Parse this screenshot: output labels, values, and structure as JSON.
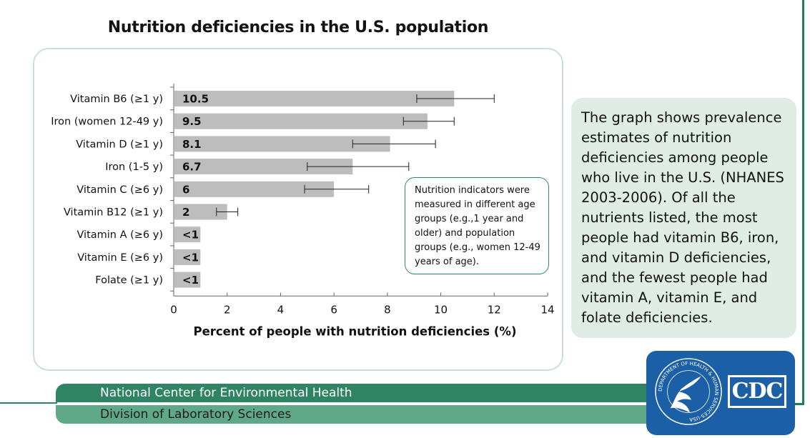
{
  "page_title": "Nutrition deficiencies in the U.S. population",
  "callout_text": "Nutrition indicators were measured in different age groups (e.g.,1 year and older) and population groups (e.g., women 12-49 years of age).",
  "description": "The graph shows prevalence estimates of nutrition deficiencies among people who live in the U.S. (NHANES 2003-2006). Of all the nutrients listed, the most people had vitamin B6, iron, and vitamin D deficiencies, and the fewest people had vitamin A, vitamin E, and folate deficiencies.",
  "footer": {
    "line1": "National Center for Environmental Health",
    "line2": "Division of Laboratory Sciences"
  },
  "logos": {
    "cdc_text": "CDC",
    "seal_text": "DEPARTMENT OF HEALTH & HUMAN SERVICES·USA"
  },
  "colors": {
    "bar": "#bdbdbd",
    "accent_green": "#2e8463",
    "panel_bg": "#dfede5",
    "logo_blue": "#1b5fa6"
  },
  "chart_data": {
    "type": "bar",
    "orientation": "horizontal",
    "categories": [
      "Vitamin B6 (≥1 y)",
      "Iron (women 12-49 y)",
      "Vitamin D (≥1 y)",
      "Iron (1-5 y)",
      "Vitamin C (≥6 y)",
      "Vitamin B12 (≥1 y)",
      "Vitamin A (≥6 y)",
      "Vitamin E (≥6 y)",
      "Folate (≥1 y)"
    ],
    "values": [
      10.5,
      9.5,
      8.1,
      6.7,
      6,
      2,
      1,
      1,
      1
    ],
    "value_labels": [
      "10.5",
      "9.5",
      "8.1",
      "6.7",
      "6",
      "2",
      "<1",
      "<1",
      "<1"
    ],
    "error_low": [
      9.1,
      8.6,
      6.7,
      5.0,
      4.9,
      1.6,
      null,
      null,
      null
    ],
    "error_high": [
      12.0,
      10.5,
      9.8,
      8.8,
      7.3,
      2.4,
      null,
      null,
      null
    ],
    "xlabel": "Percent of people with nutrition deficiencies (%)",
    "xlim": [
      0,
      14
    ],
    "xticks": [
      0,
      2,
      4,
      6,
      8,
      10,
      12,
      14
    ],
    "grid": false
  }
}
